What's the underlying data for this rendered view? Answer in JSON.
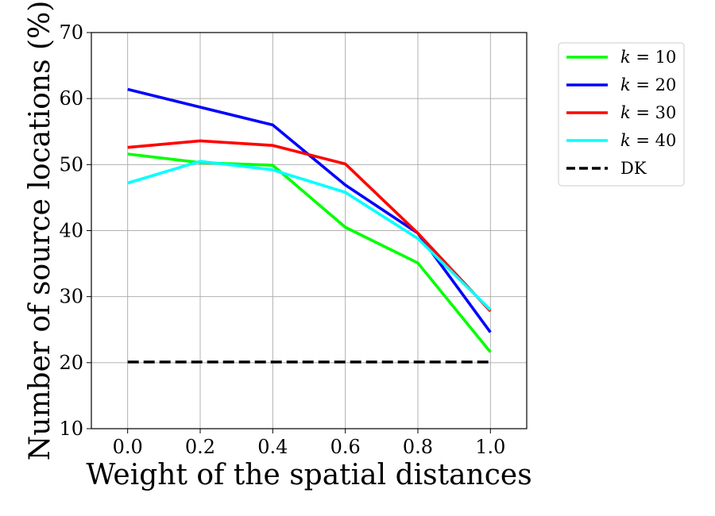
{
  "chart_data": {
    "type": "line",
    "xlabel": "Weight of the spatial distances",
    "ylabel": "Number of source locations (%)",
    "x": [
      0.0,
      0.2,
      0.4,
      0.6,
      0.8,
      1.0
    ],
    "xticks": [
      "0.0",
      "0.2",
      "0.4",
      "0.6",
      "0.8",
      "1.0"
    ],
    "yticks": [
      "10",
      "20",
      "30",
      "40",
      "50",
      "60",
      "70"
    ],
    "xlim": [
      -0.1,
      1.1
    ],
    "ylim": [
      10,
      70
    ],
    "grid": true,
    "legend_position": "outside-top-right",
    "series": [
      {
        "name": "k = 10",
        "label_var": "k",
        "label_rest": " = 10",
        "color": "#00ff00",
        "style": "solid",
        "values": [
          51.6,
          50.3,
          49.9,
          40.5,
          35.1,
          21.6
        ]
      },
      {
        "name": "k = 20",
        "label_var": "k",
        "label_rest": " = 20",
        "color": "#0000ff",
        "style": "solid",
        "values": [
          61.4,
          58.7,
          56.0,
          46.9,
          39.6,
          24.6
        ]
      },
      {
        "name": "k = 30",
        "label_var": "k",
        "label_rest": " = 30",
        "color": "#ff0000",
        "style": "solid",
        "values": [
          52.6,
          53.6,
          52.9,
          50.1,
          39.6,
          27.8
        ]
      },
      {
        "name": "k = 40",
        "label_var": "k",
        "label_rest": " = 40",
        "color": "#00ffff",
        "style": "solid",
        "values": [
          47.2,
          50.5,
          49.2,
          45.8,
          38.8,
          28.0
        ]
      },
      {
        "name": "DK",
        "label_var": "",
        "label_rest": "DK",
        "color": "#000000",
        "style": "dashed",
        "values": [
          20.1,
          20.1,
          20.1,
          20.1,
          20.1,
          20.1
        ]
      }
    ]
  }
}
